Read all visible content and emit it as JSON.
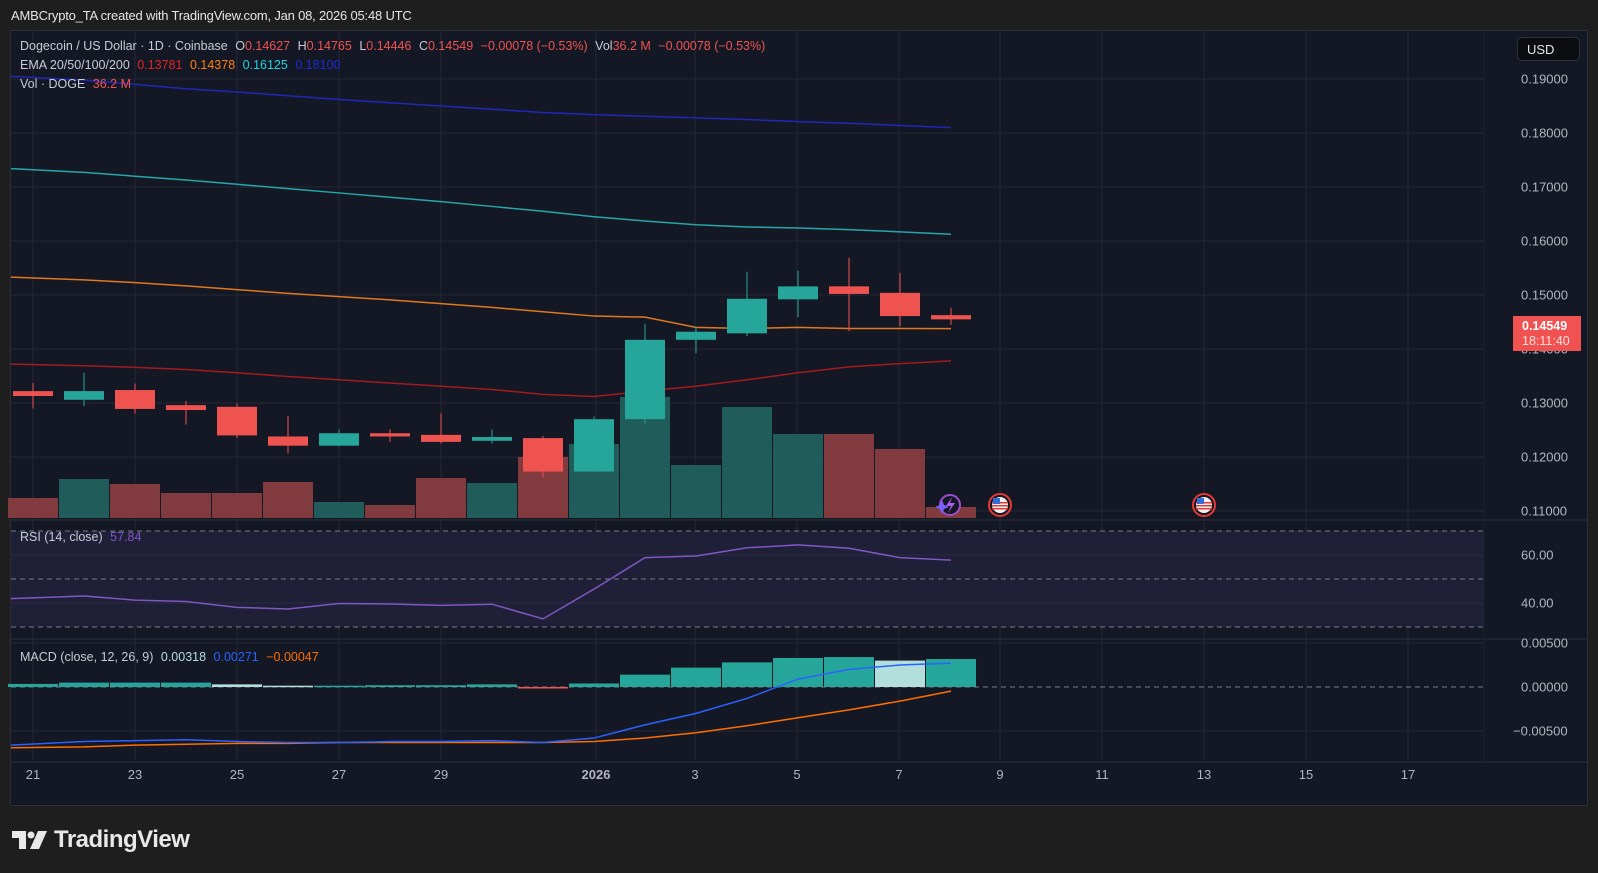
{
  "credit": "AMBCrypto_TA created with TradingView.com, Jan 08, 2026 05:48 UTC",
  "legend": {
    "symbol": "Dogecoin / US Dollar · 1D · Coinbase",
    "o_label": "O",
    "o": "0.14627",
    "h_label": "H",
    "h": "0.14765",
    "l_label": "L",
    "l": "0.14446",
    "c_label": "C",
    "c": "0.14549",
    "change": "−0.00078 (−0.53%)",
    "vol_label": "Vol",
    "vol": "36.2 M",
    "vol_change": "−0.00078 (−0.53%)",
    "ema_label": "EMA 20/50/100/200",
    "ema20": "0.13781",
    "ema50": "0.14378",
    "ema100": "0.16125",
    "ema200": "0.18100",
    "volume_label": "Vol · DOGE",
    "volume_value": "36.2 M",
    "rsi_label": "RSI (14, close)",
    "rsi_value": "57.84",
    "macd_label": "MACD (close, 12, 26, 9)",
    "macd_hist": "0.00318",
    "macd_line": "0.00271",
    "macd_signal": "−0.00047"
  },
  "currency": "USD",
  "last_price": {
    "price": "0.14549",
    "countdown": "18:11:40"
  },
  "colors": {
    "up": "#26a69a",
    "down": "#ef5350",
    "vol_up": "#1f5c5a",
    "vol_down": "#813a3e",
    "ema20": "#a31a1f",
    "ema50": "#e0791e",
    "ema100": "#26a6a6",
    "ema200": "#1f26b8",
    "rsi": "#7e57c2",
    "macd": "#2962ff",
    "signal": "#ff6d00",
    "hist_up_strong": "#26a69a",
    "hist_up_weak": "#b2dfdb"
  },
  "branding": "TradingView",
  "chart_data": [
    {
      "type": "candlestick",
      "title": "Dogecoin / US Dollar · 1D · Coinbase",
      "xlabel": "",
      "ylabel": "USD",
      "x_tick_labels": [
        "21",
        "23",
        "25",
        "27",
        "29",
        "2026",
        "3",
        "5",
        "7",
        "9",
        "11",
        "13",
        "15",
        "17"
      ],
      "y_tick_labels": [
        "0.19000",
        "0.18000",
        "0.17000",
        "0.16000",
        "0.15000",
        "0.14000",
        "0.13000",
        "0.12000",
        "0.11000"
      ],
      "ylim": [
        0.1085,
        0.1975
      ],
      "categories": [
        "Dec 21",
        "Dec 22",
        "Dec 23",
        "Dec 24",
        "Dec 25",
        "Dec 26",
        "Dec 27",
        "Dec 28",
        "Dec 29",
        "Dec 30",
        "Dec 31",
        "Jan 1",
        "Jan 2",
        "Jan 3",
        "Jan 4",
        "Jan 5",
        "Jan 6",
        "Jan 7",
        "Jan 8"
      ],
      "open": [
        0.1322,
        0.1306,
        0.1324,
        0.1296,
        0.1293,
        0.1238,
        0.1221,
        0.1244,
        0.1241,
        0.123,
        0.1235,
        0.1173,
        0.127,
        0.1417,
        0.1429,
        0.1492,
        0.1516,
        0.1504,
        0.14627
      ],
      "high": [
        0.1337,
        0.1356,
        0.1336,
        0.1304,
        0.1299,
        0.1276,
        0.1251,
        0.1251,
        0.1281,
        0.1251,
        0.1239,
        0.1275,
        0.1447,
        0.1442,
        0.1543,
        0.1545,
        0.1569,
        0.1541,
        0.14765
      ],
      "low": [
        0.129,
        0.1294,
        0.128,
        0.126,
        0.1235,
        0.1207,
        0.122,
        0.1228,
        0.1225,
        0.1225,
        0.1162,
        0.1173,
        0.1262,
        0.1392,
        0.1424,
        0.1459,
        0.1433,
        0.1442,
        0.14446
      ],
      "close": [
        0.1313,
        0.1322,
        0.1289,
        0.1287,
        0.124,
        0.1221,
        0.1244,
        0.1238,
        0.1228,
        0.1237,
        0.1173,
        0.127,
        0.1417,
        0.1432,
        0.1493,
        0.1516,
        0.1502,
        0.1461,
        0.14549
      ],
      "volume_rel_height": [
        20,
        39,
        34,
        25,
        25,
        36,
        16,
        13,
        40,
        35,
        61,
        74,
        121,
        53,
        111,
        84,
        84,
        69,
        11
      ],
      "overlays": [
        {
          "name": "EMA 20",
          "last": 0.13781,
          "values": [
            0.1372,
            0.1369,
            0.1366,
            0.1362,
            0.1356,
            0.1349,
            0.1343,
            0.1337,
            0.1331,
            0.1325,
            0.1316,
            0.1312,
            0.1322,
            0.1331,
            0.1343,
            0.1356,
            0.1367,
            0.1373,
            0.13781
          ]
        },
        {
          "name": "EMA 50",
          "last": 0.14378,
          "values": [
            0.1533,
            0.1528,
            0.1523,
            0.1517,
            0.151,
            0.1503,
            0.1497,
            0.1491,
            0.1484,
            0.1477,
            0.1469,
            0.1461,
            0.1459,
            0.144,
            0.1438,
            0.144,
            0.1438,
            0.1438,
            0.14378
          ]
        },
        {
          "name": "EMA 100",
          "last": 0.16125,
          "values": [
            0.1734,
            0.1727,
            0.172,
            0.1713,
            0.1705,
            0.1697,
            0.1689,
            0.1681,
            0.1673,
            0.1664,
            0.1655,
            0.1645,
            0.1637,
            0.163,
            0.1626,
            0.1624,
            0.1621,
            0.1617,
            0.16125
          ]
        },
        {
          "name": "EMA 200",
          "last": 0.181,
          "values": [
            0.1905,
            0.1898,
            0.189,
            0.1882,
            0.1876,
            0.1869,
            0.1862,
            0.1856,
            0.185,
            0.1844,
            0.1838,
            0.1834,
            0.1831,
            0.1828,
            0.1825,
            0.1821,
            0.1818,
            0.1814,
            0.181
          ]
        }
      ],
      "events": [
        "earnings-icon (Jan 8)",
        "us-flag economic event (Jan 9)",
        "us-flag economic event (Jan 13)"
      ]
    },
    {
      "type": "line",
      "title": "RSI (14, close)",
      "y_tick_labels": [
        "60.00",
        "40.00"
      ],
      "ylim": [
        24,
        76
      ],
      "bands": [
        70,
        50,
        30
      ],
      "categories": [
        "Dec 21",
        "Dec 22",
        "Dec 23",
        "Dec 24",
        "Dec 25",
        "Dec 26",
        "Dec 27",
        "Dec 28",
        "Dec 29",
        "Dec 30",
        "Dec 31",
        "Jan 1",
        "Jan 2",
        "Jan 3",
        "Jan 4",
        "Jan 5",
        "Jan 6",
        "Jan 7",
        "Jan 8"
      ],
      "values": [
        41.8,
        42.9,
        41.2,
        40.6,
        38.2,
        37.5,
        39.8,
        39.6,
        39.0,
        39.5,
        33.4,
        45.8,
        58.9,
        59.6,
        63.0,
        64.2,
        62.8,
        58.9,
        57.84
      ]
    },
    {
      "type": "bar+line",
      "title": "MACD (close, 12, 26, 9)",
      "y_tick_labels": [
        "0.00500",
        "0.00000",
        "−0.00500"
      ],
      "ylim": [
        -0.0072,
        0.0062
      ],
      "categories": [
        "Dec 21",
        "Dec 22",
        "Dec 23",
        "Dec 24",
        "Dec 25",
        "Dec 26",
        "Dec 27",
        "Dec 28",
        "Dec 29",
        "Dec 30",
        "Dec 31",
        "Jan 1",
        "Jan 2",
        "Jan 3",
        "Jan 4",
        "Jan 5",
        "Jan 6",
        "Jan 7",
        "Jan 8"
      ],
      "series": [
        {
          "name": "Histogram",
          "values": [
            0.00035,
            0.0005,
            0.0005,
            0.0005,
            0.0003,
            0.00015,
            0.00015,
            0.0002,
            0.0002,
            0.0003,
            -5e-05,
            0.0004,
            0.0014,
            0.0022,
            0.0028,
            0.0033,
            0.0034,
            0.003,
            0.00318
          ]
        },
        {
          "name": "MACD",
          "values": [
            -0.0066,
            -0.0062,
            -0.0061,
            -0.006,
            -0.0062,
            -0.0063,
            -0.0063,
            -0.0062,
            -0.0062,
            -0.0061,
            -0.0063,
            -0.0058,
            -0.0043,
            -0.003,
            -0.0013,
            0.0009,
            0.002,
            0.0025,
            0.00271
          ]
        },
        {
          "name": "Signal",
          "values": [
            -0.0069,
            -0.0068,
            -0.0066,
            -0.0065,
            -0.0064,
            -0.0064,
            -0.0063,
            -0.0063,
            -0.0063,
            -0.0063,
            -0.0063,
            -0.0062,
            -0.0058,
            -0.0052,
            -0.0044,
            -0.0035,
            -0.0026,
            -0.0016,
            -0.00047
          ]
        }
      ]
    }
  ]
}
